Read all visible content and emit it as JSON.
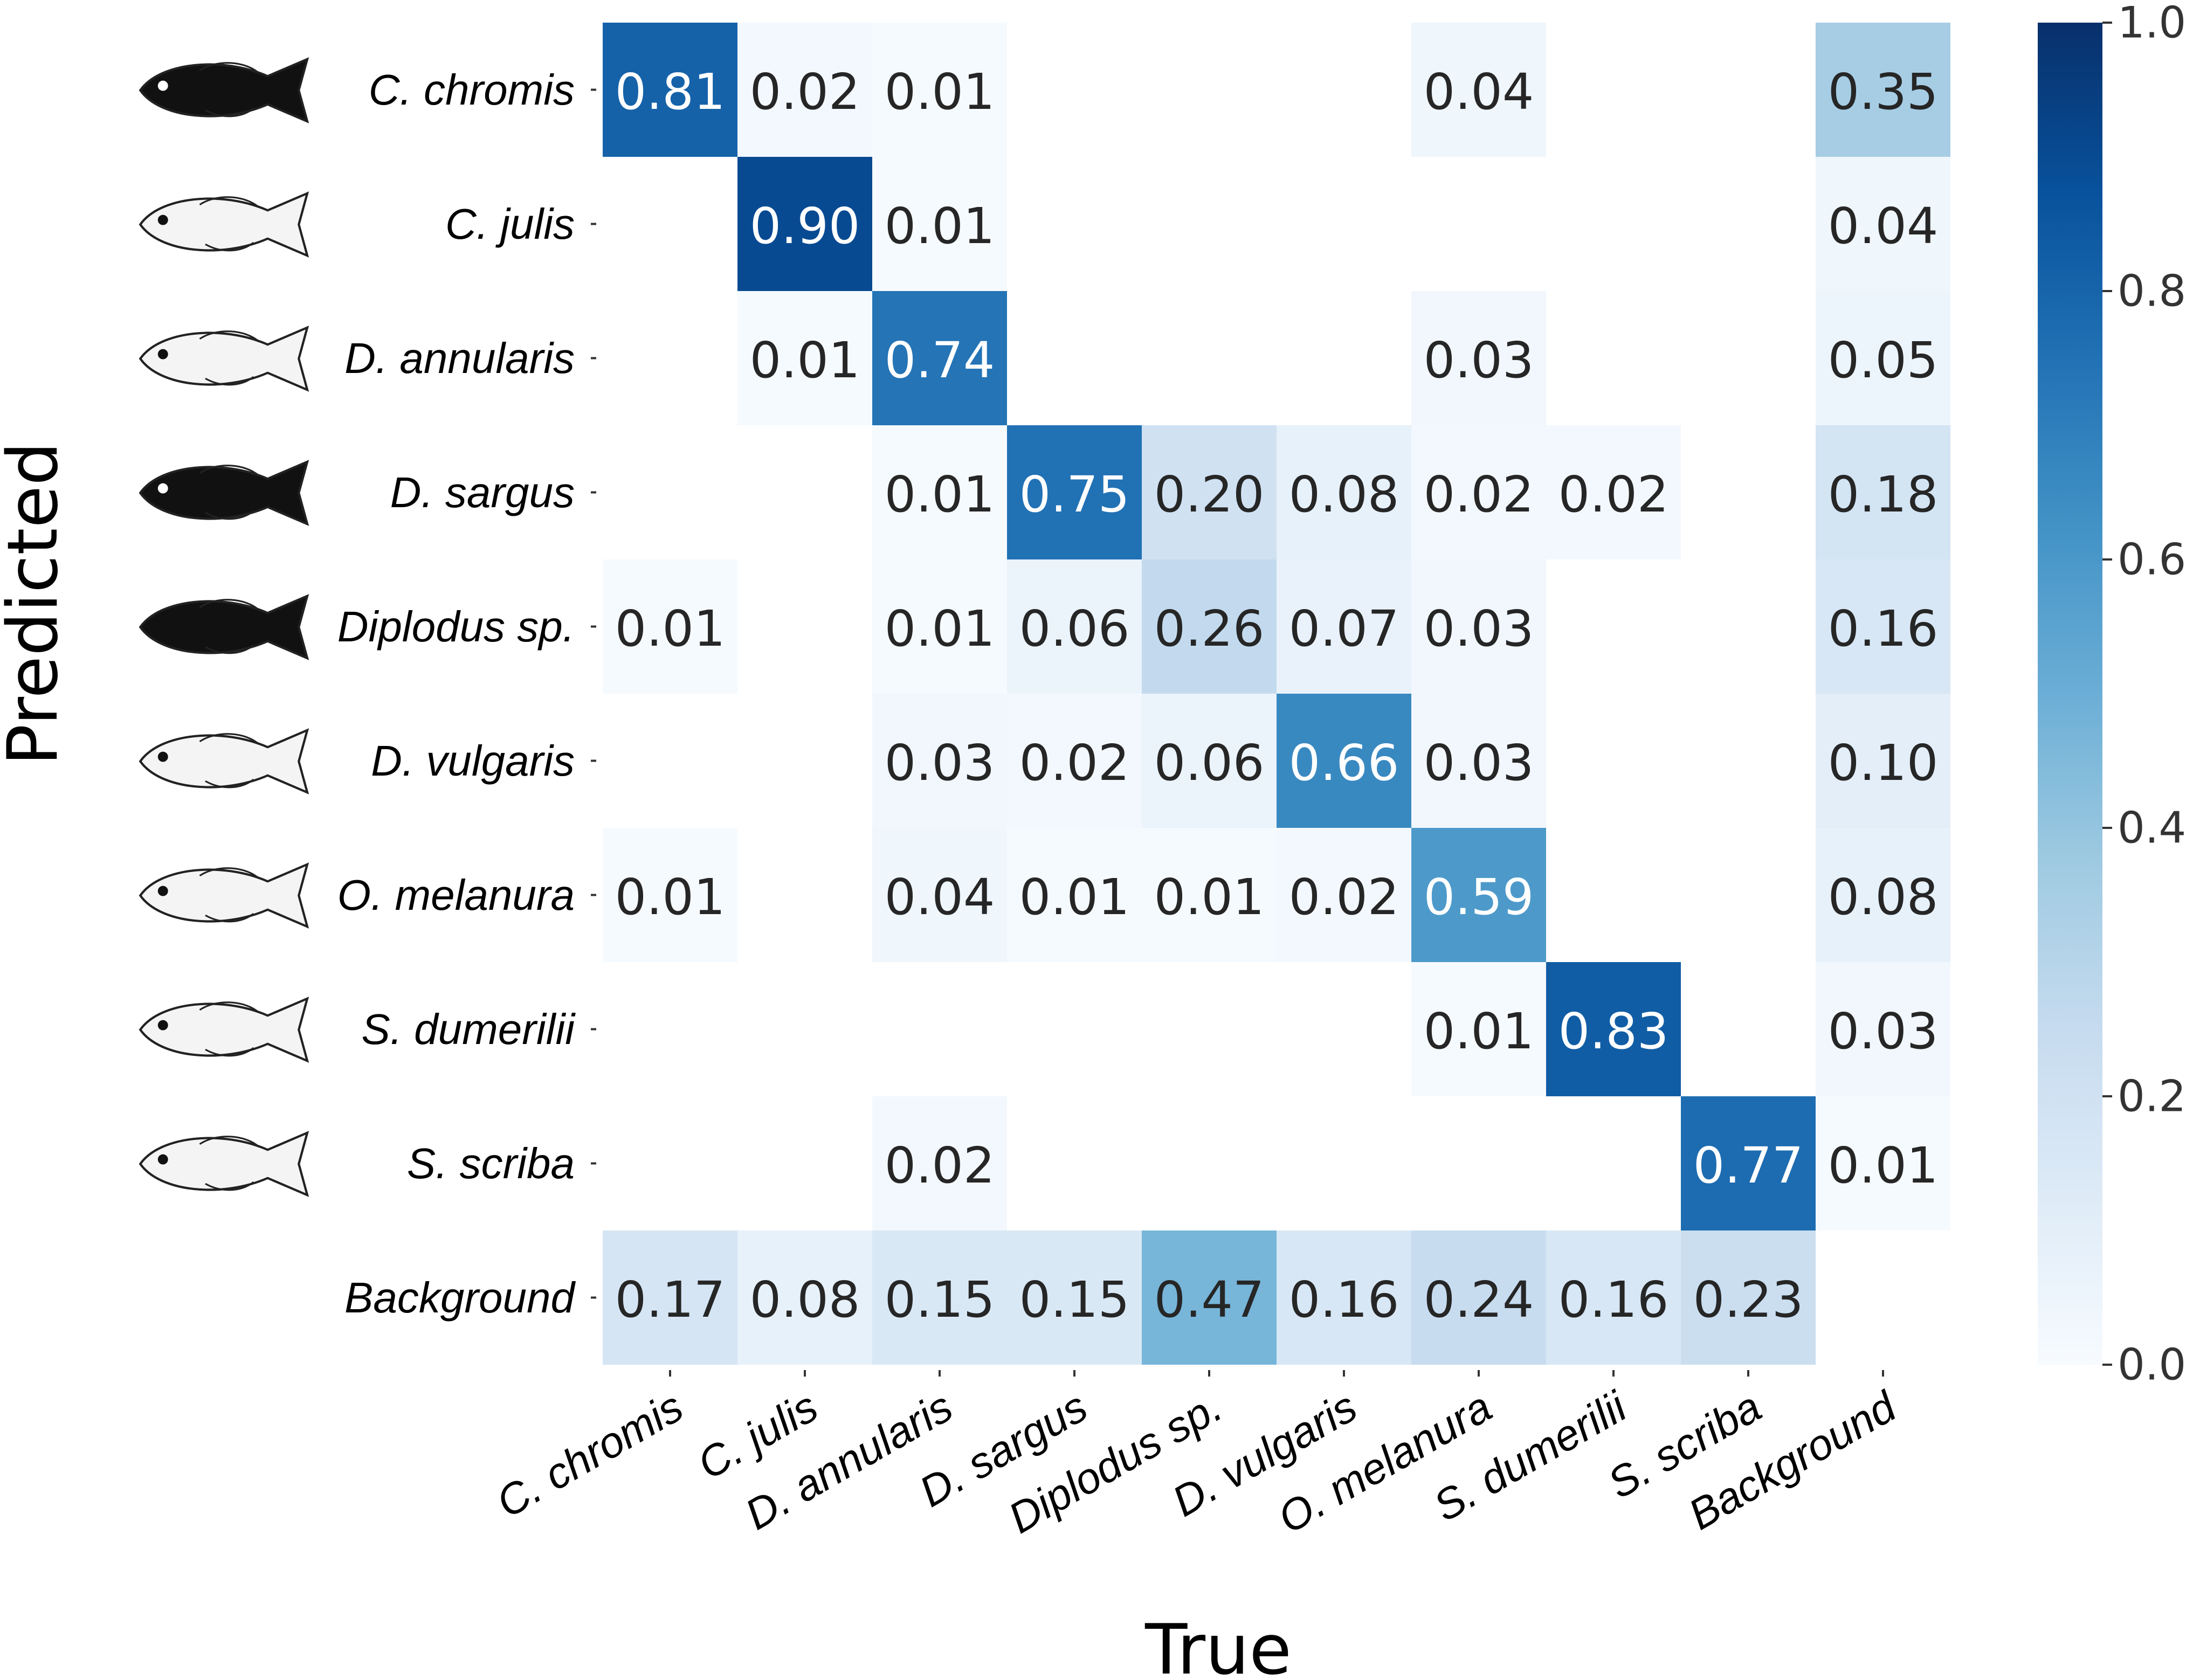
{
  "chart_data": {
    "type": "heatmap",
    "title": "",
    "xlabel": "True",
    "ylabel": "Predicted",
    "rows": [
      "C. chromis",
      "C. julis",
      "D. annularis",
      "D. sargus",
      "Diplodus sp.",
      "D. vulgaris",
      "O. melanura",
      "S. dumerilii",
      "S. scriba",
      "Background"
    ],
    "columns": [
      "C. chromis",
      "C. julis",
      "D. annularis",
      "D. sargus",
      "Diplodus sp.",
      "D. vulgaris",
      "O. melanura",
      "S. dumerilii",
      "S. scriba",
      "Background"
    ],
    "values": [
      [
        0.81,
        0.02,
        0.01,
        null,
        null,
        null,
        0.04,
        null,
        null,
        0.35
      ],
      [
        null,
        0.9,
        0.01,
        null,
        null,
        null,
        null,
        null,
        null,
        0.04
      ],
      [
        null,
        0.01,
        0.74,
        null,
        null,
        null,
        0.03,
        null,
        null,
        0.05
      ],
      [
        null,
        null,
        0.01,
        0.75,
        0.2,
        0.08,
        0.02,
        0.02,
        null,
        0.18
      ],
      [
        0.01,
        null,
        0.01,
        0.06,
        0.26,
        0.07,
        0.03,
        null,
        null,
        0.16
      ],
      [
        null,
        null,
        0.03,
        0.02,
        0.06,
        0.66,
        0.03,
        null,
        null,
        0.1
      ],
      [
        0.01,
        null,
        0.04,
        0.01,
        0.01,
        0.02,
        0.59,
        null,
        null,
        0.08
      ],
      [
        null,
        null,
        null,
        null,
        null,
        null,
        0.01,
        0.83,
        null,
        0.03
      ],
      [
        null,
        null,
        0.02,
        null,
        null,
        null,
        null,
        null,
        0.77,
        0.01
      ],
      [
        0.17,
        0.08,
        0.15,
        0.15,
        0.47,
        0.16,
        0.24,
        0.16,
        0.23,
        null
      ]
    ],
    "value_range": [
      0.0,
      1.0
    ],
    "colormap": "Blues",
    "colorbar_ticks": [
      "0.0",
      "0.2",
      "0.4",
      "0.6",
      "0.8",
      "1.0"
    ],
    "row_icons": [
      "fish-drawing",
      "fish-drawing",
      "fish-drawing",
      "fish-drawing",
      "fish-silhouette",
      "fish-drawing",
      "fish-drawing",
      "fish-drawing",
      "fish-drawing",
      ""
    ]
  }
}
